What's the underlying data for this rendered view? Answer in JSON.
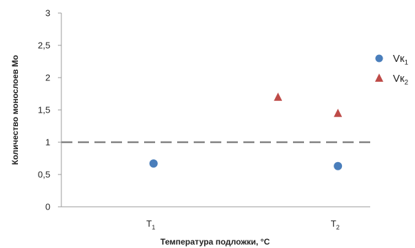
{
  "chart_data": {
    "type": "scatter",
    "title": "",
    "xlabel": "Температура подложки, °С",
    "ylabel": "Количество монослоев Мо",
    "ylim": [
      0,
      3
    ],
    "yticks": [
      "0",
      "0,5",
      "1",
      "1,5",
      "2",
      "2,5",
      "3"
    ],
    "xlim": [
      0,
      3.35
    ],
    "xticks": [
      {
        "x": 1,
        "base": "T",
        "sub": "1"
      },
      {
        "x": 3,
        "base": "T",
        "sub": "2"
      }
    ],
    "grid": false,
    "legend_position": "right",
    "reference_line": {
      "y": 1,
      "style": "dashed",
      "color": "#808080"
    },
    "series": [
      {
        "name_base": "Vк",
        "name_sub": "1",
        "marker": "circle",
        "color": "#4a7ebb",
        "points": [
          {
            "x": 1,
            "y": 0.67
          },
          {
            "x": 3,
            "y": 0.63
          }
        ]
      },
      {
        "name_base": "Vк",
        "name_sub": "2",
        "marker": "triangle",
        "color": "#be4b48",
        "points": [
          {
            "x": 2.35,
            "y": 1.7
          },
          {
            "x": 3,
            "y": 1.45
          }
        ]
      }
    ]
  }
}
